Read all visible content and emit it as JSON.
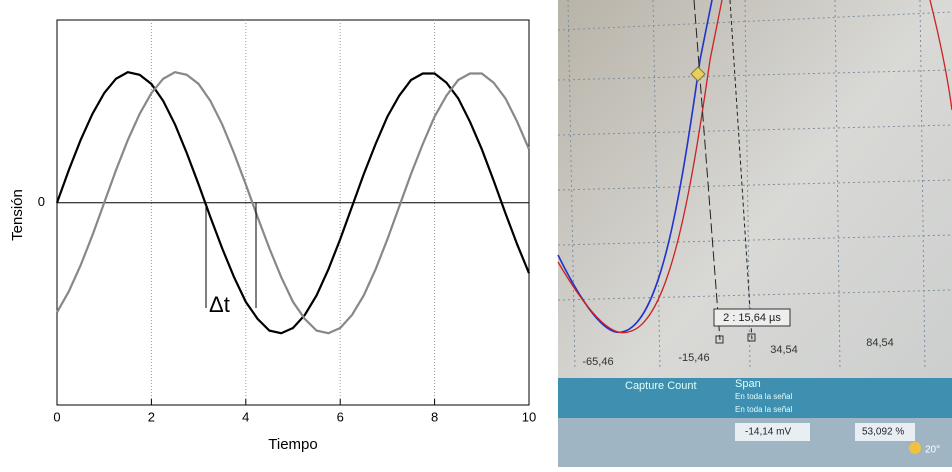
{
  "chart_data": {
    "type": "line",
    "x_label": "Tiempo",
    "y_label": "Tensión",
    "annotation": "Δt",
    "x": [
      0,
      0.25,
      0.5,
      0.75,
      1,
      1.25,
      1.5,
      1.75,
      2,
      2.25,
      2.5,
      2.75,
      3,
      3.25,
      3.5,
      3.75,
      4,
      4.25,
      4.5,
      4.75,
      5,
      5.25,
      5.5,
      5.75,
      6,
      6.25,
      6.5,
      6.75,
      7,
      7.25,
      7.5,
      7.75,
      8,
      8.25,
      8.5,
      8.75,
      9,
      9.25,
      9.5,
      9.75,
      10
    ],
    "series": [
      {
        "color": "#000000",
        "values": [
          0,
          0.25,
          0.48,
          0.68,
          0.84,
          0.95,
          1.0,
          0.98,
          0.91,
          0.78,
          0.6,
          0.38,
          0.14,
          -0.11,
          -0.35,
          -0.57,
          -0.76,
          -0.89,
          -0.98,
          -1.0,
          -0.96,
          -0.86,
          -0.71,
          -0.51,
          -0.28,
          -0.03,
          0.22,
          0.45,
          0.66,
          0.82,
          0.94,
          0.99,
          0.99,
          0.92,
          0.8,
          0.62,
          0.41,
          0.17,
          -0.08,
          -0.32,
          -0.54
        ]
      },
      {
        "color": "#888888",
        "values": [
          -0.84,
          -0.68,
          -0.48,
          -0.25,
          0,
          0.25,
          0.48,
          0.68,
          0.84,
          0.95,
          1.0,
          0.98,
          0.91,
          0.78,
          0.6,
          0.38,
          0.14,
          -0.11,
          -0.35,
          -0.57,
          -0.76,
          -0.89,
          -0.98,
          -1.0,
          -0.96,
          -0.86,
          -0.71,
          -0.51,
          -0.28,
          -0.03,
          0.22,
          0.45,
          0.66,
          0.82,
          0.94,
          0.99,
          0.99,
          0.92,
          0.8,
          0.62,
          0.41
        ]
      }
    ],
    "xlim": [
      0,
      10
    ],
    "xticks": [
      0,
      2,
      4,
      6,
      8,
      10
    ],
    "ylim": [
      -1.55,
      1.4
    ],
    "yticks": [
      0
    ],
    "grid": "x"
  },
  "screen": {
    "axis_labels": [
      "-65,46",
      "-15,46",
      "34,54",
      "84,54"
    ],
    "cursor_readout": "2 : 15,64 µs",
    "panel": [
      "Capture Count",
      "Span",
      "En toda la señal",
      "En toda la señal"
    ],
    "toolbar": [
      "-14,14 mV",
      "53,092 %",
      "20°"
    ]
  }
}
